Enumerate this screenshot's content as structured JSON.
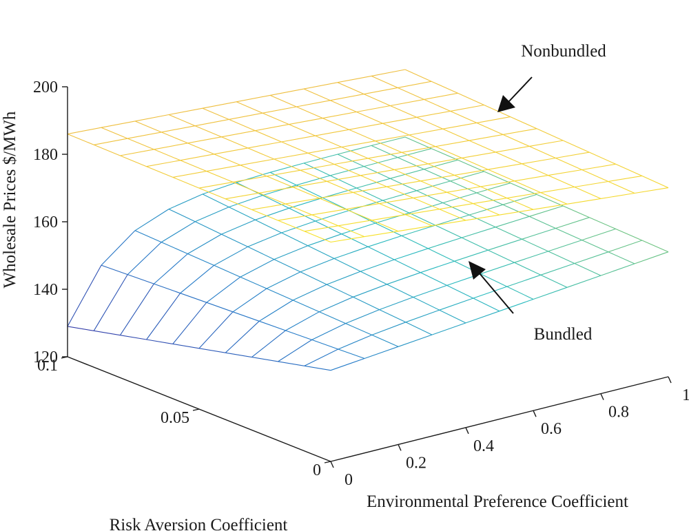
{
  "chart_data": {
    "type": "surface",
    "title": "",
    "zlabel": "Wholesale Prices $/MWh",
    "xlabel": "Environmental Preference Coefficient",
    "ylabel": "Risk Aversion Coefficient",
    "zlim": [
      120,
      200
    ],
    "xlim": [
      0,
      1
    ],
    "ylim": [
      0,
      0.1
    ],
    "z_ticks": [
      "120",
      "140",
      "160",
      "180",
      "200"
    ],
    "x_ticks": [
      "0",
      "0.2",
      "0.4",
      "0.6",
      "0.8",
      "1"
    ],
    "y_ticks": [
      "0",
      "0.05",
      "0.1"
    ],
    "grid": {
      "env_steps": 10,
      "risk_steps": 10
    },
    "series": [
      {
        "name": "Nonbundled",
        "model": "plane",
        "corner_values": {
          "env0_risk0": 185,
          "env1_risk0": 176,
          "env0_risk01": 186,
          "env1_risk01": 180
        },
        "colormap": "yellow-to-orange"
      },
      {
        "name": "Bundled",
        "model": "saturating",
        "corner_values": {
          "env0_risk0": 147,
          "env1_risk0": 157,
          "env0_risk01": 129,
          "env1_risk01": 160
        },
        "colormap": "blue-to-green"
      }
    ],
    "annotations": [
      {
        "text": "Nonbundled",
        "points_to": "Nonbundled"
      },
      {
        "text": "Bundled",
        "points_to": "Bundled"
      }
    ]
  }
}
